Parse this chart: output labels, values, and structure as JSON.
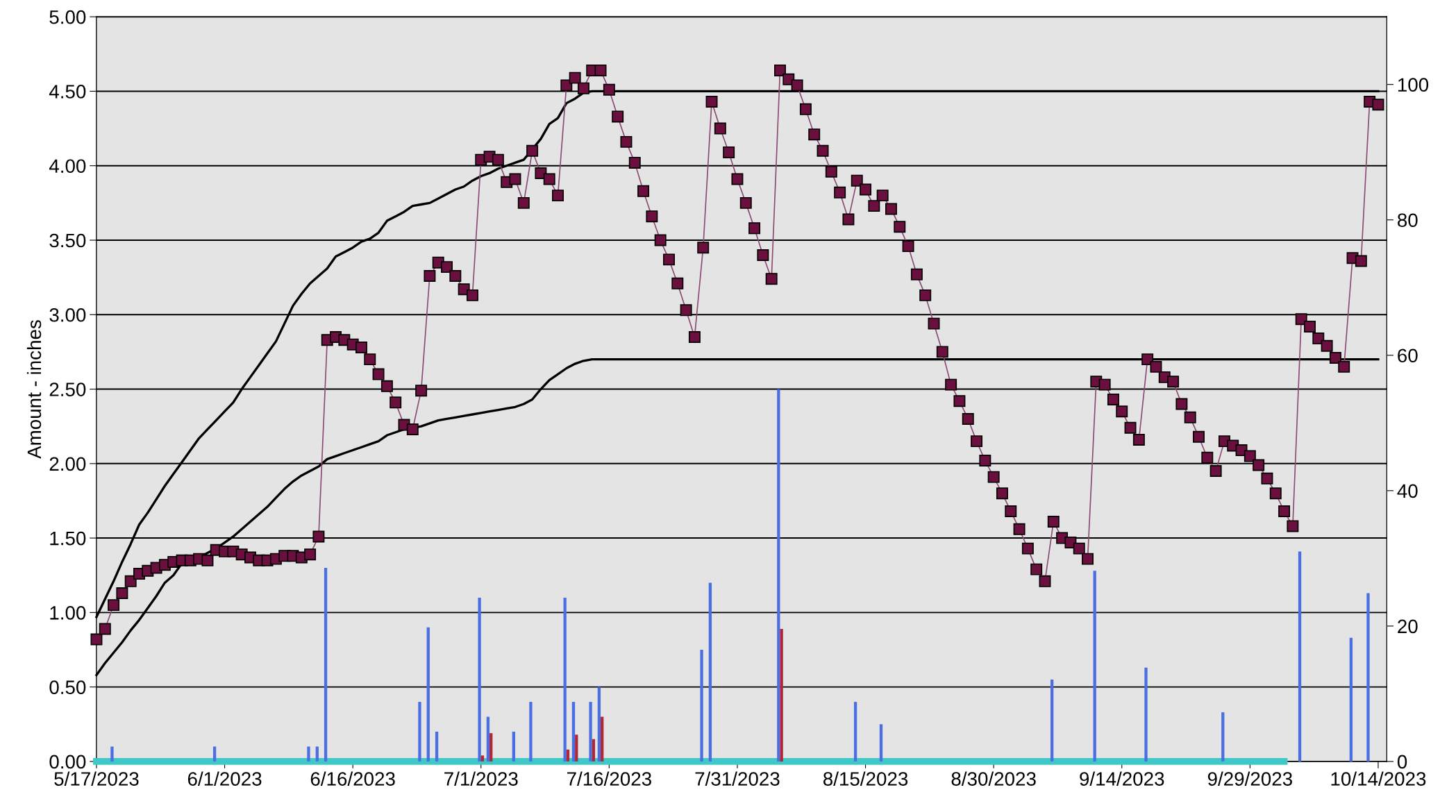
{
  "chart_data": {
    "type": "line",
    "ylabel": "Amount - inches",
    "ylim": [
      0,
      5
    ],
    "yticks": [
      {
        "value": 0,
        "label": "0.00"
      },
      {
        "value": 0.5,
        "label": "0.50"
      },
      {
        "value": 1,
        "label": "1.00"
      },
      {
        "value": 1.5,
        "label": "1.50"
      },
      {
        "value": 2,
        "label": "2.00"
      },
      {
        "value": 2.5,
        "label": "2.50"
      },
      {
        "value": 3,
        "label": "3.00"
      },
      {
        "value": 3.5,
        "label": "3.50"
      },
      {
        "value": 4,
        "label": "4.00"
      },
      {
        "value": 4.5,
        "label": "4.50"
      },
      {
        "value": 5,
        "label": "5.00"
      }
    ],
    "y2lim": [
      0,
      110
    ],
    "y2ticks": [
      0,
      20,
      40,
      60,
      80,
      100
    ],
    "xlim": [
      "2023-05-17",
      "2023-10-15"
    ],
    "xticks": [
      {
        "value": "2023-05-17",
        "label": "5/17/2023"
      },
      {
        "value": "2023-06-01",
        "label": "6/1/2023"
      },
      {
        "value": "2023-06-16",
        "label": "6/16/2023"
      },
      {
        "value": "2023-07-01",
        "label": "7/1/2023"
      },
      {
        "value": "2023-07-16",
        "label": "7/16/2023"
      },
      {
        "value": "2023-07-31",
        "label": "7/31/2023"
      },
      {
        "value": "2023-08-15",
        "label": "8/15/2023"
      },
      {
        "value": "2023-08-30",
        "label": "8/30/2023"
      },
      {
        "value": "2023-09-14",
        "label": "9/14/2023"
      },
      {
        "value": "2023-09-29",
        "label": "9/29/2023"
      },
      {
        "value": "2023-10-14",
        "label": "10/14/2023"
      }
    ],
    "grid": "y",
    "x": [
      "2023-05-17",
      "2023-05-18",
      "2023-05-19",
      "2023-05-20",
      "2023-05-21",
      "2023-05-22",
      "2023-05-23",
      "2023-05-24",
      "2023-05-25",
      "2023-05-26",
      "2023-05-27",
      "2023-05-28",
      "2023-05-29",
      "2023-05-30",
      "2023-05-31",
      "2023-06-01",
      "2023-06-02",
      "2023-06-03",
      "2023-06-04",
      "2023-06-05",
      "2023-06-06",
      "2023-06-07",
      "2023-06-08",
      "2023-06-09",
      "2023-06-10",
      "2023-06-11",
      "2023-06-12",
      "2023-06-13",
      "2023-06-14",
      "2023-06-15",
      "2023-06-16",
      "2023-06-17",
      "2023-06-18",
      "2023-06-19",
      "2023-06-20",
      "2023-06-21",
      "2023-06-22",
      "2023-06-23",
      "2023-06-24",
      "2023-06-25",
      "2023-06-26",
      "2023-06-27",
      "2023-06-28",
      "2023-06-29",
      "2023-06-30",
      "2023-07-01",
      "2023-07-02",
      "2023-07-03",
      "2023-07-04",
      "2023-07-05",
      "2023-07-06",
      "2023-07-07",
      "2023-07-08",
      "2023-07-09",
      "2023-07-10",
      "2023-07-11",
      "2023-07-12",
      "2023-07-13",
      "2023-07-14",
      "2023-07-15",
      "2023-07-16",
      "2023-07-17",
      "2023-07-18",
      "2023-07-19",
      "2023-07-20",
      "2023-07-21",
      "2023-07-22",
      "2023-07-23",
      "2023-07-24",
      "2023-07-25",
      "2023-07-26",
      "2023-07-27",
      "2023-07-28",
      "2023-07-29",
      "2023-07-30",
      "2023-07-31",
      "2023-08-01",
      "2023-08-02",
      "2023-08-03",
      "2023-08-04",
      "2023-08-05",
      "2023-08-06",
      "2023-08-07",
      "2023-08-08",
      "2023-08-09",
      "2023-08-10",
      "2023-08-11",
      "2023-08-12",
      "2023-08-13",
      "2023-08-14",
      "2023-08-15",
      "2023-08-16",
      "2023-08-17",
      "2023-08-18",
      "2023-08-19",
      "2023-08-20",
      "2023-08-21",
      "2023-08-22",
      "2023-08-23",
      "2023-08-24",
      "2023-08-25",
      "2023-08-26",
      "2023-08-27",
      "2023-08-28",
      "2023-08-29",
      "2023-08-30",
      "2023-08-31",
      "2023-09-01",
      "2023-09-02",
      "2023-09-03",
      "2023-09-04",
      "2023-09-05",
      "2023-09-06",
      "2023-09-07",
      "2023-09-08",
      "2023-09-09",
      "2023-09-10",
      "2023-09-11",
      "2023-09-12",
      "2023-09-13",
      "2023-09-14",
      "2023-09-15",
      "2023-09-16",
      "2023-09-17",
      "2023-09-18",
      "2023-09-19",
      "2023-09-20",
      "2023-09-21",
      "2023-09-22",
      "2023-09-23",
      "2023-09-24",
      "2023-09-25",
      "2023-09-26",
      "2023-09-27",
      "2023-09-28",
      "2023-09-29",
      "2023-09-30",
      "2023-10-01",
      "2023-10-02",
      "2023-10-03",
      "2023-10-04",
      "2023-10-05",
      "2023-10-06",
      "2023-10-07",
      "2023-10-08",
      "2023-10-09",
      "2023-10-10",
      "2023-10-11",
      "2023-10-12",
      "2023-10-13",
      "2023-10-14"
    ],
    "series": [
      {
        "color": "#40c8c8",
        "marker": "none",
        "x": [
          "2023-05-17",
          "2023-10-03"
        ],
        "values": [
          0,
          0
        ]
      },
      {
        "type": "bar",
        "color": "#4a6fe3",
        "x": [
          "2023-05-19",
          "2023-05-31",
          "2023-06-11",
          "2023-06-12",
          "2023-06-13",
          "2023-06-24",
          "2023-06-25",
          "2023-06-26",
          "2023-07-01",
          "2023-07-02",
          "2023-07-05",
          "2023-07-07",
          "2023-07-11",
          "2023-07-12",
          "2023-07-14",
          "2023-07-15",
          "2023-07-27",
          "2023-07-28",
          "2023-08-05",
          "2023-08-14",
          "2023-08-17",
          "2023-09-06",
          "2023-09-11",
          "2023-09-17",
          "2023-09-26",
          "2023-10-05",
          "2023-10-11",
          "2023-10-13"
        ],
        "values": [
          0.1,
          0.1,
          0.1,
          0.1,
          1.3,
          0.4,
          0.9,
          0.2,
          1.1,
          0.3,
          0.2,
          0.4,
          1.1,
          0.4,
          0.4,
          0.5,
          0.75,
          1.2,
          2.5,
          0.4,
          0.25,
          0.55,
          1.28,
          0.63,
          0.33,
          1.41,
          0.83,
          1.13
        ]
      },
      {
        "type": "bar",
        "color": "#b02838",
        "x": [
          "2023-07-01",
          "2023-07-02",
          "2023-07-11",
          "2023-07-12",
          "2023-07-14",
          "2023-07-15",
          "2023-08-05"
        ],
        "values": [
          0.04,
          0.19,
          0.08,
          0.18,
          0.15,
          0.3,
          0.89
        ]
      },
      {
        "color": "#000000",
        "marker": "none",
        "x": [
          "2023-05-17",
          "2023-05-18",
          "2023-05-19",
          "2023-05-20",
          "2023-05-21",
          "2023-05-22",
          "2023-05-23",
          "2023-05-24",
          "2023-05-25",
          "2023-05-26",
          "2023-05-27",
          "2023-05-28",
          "2023-05-29",
          "2023-05-30",
          "2023-05-31",
          "2023-06-01",
          "2023-06-02",
          "2023-06-03",
          "2023-06-04",
          "2023-06-05",
          "2023-06-06",
          "2023-06-07",
          "2023-06-08",
          "2023-06-09",
          "2023-06-10",
          "2023-06-11",
          "2023-06-12",
          "2023-06-13",
          "2023-06-14",
          "2023-06-15",
          "2023-06-16",
          "2023-06-17",
          "2023-06-18",
          "2023-06-19",
          "2023-06-20",
          "2023-06-21",
          "2023-06-22",
          "2023-06-23",
          "2023-06-24",
          "2023-06-25",
          "2023-06-26",
          "2023-06-27",
          "2023-06-28",
          "2023-06-29",
          "2023-06-30",
          "2023-07-01",
          "2023-07-02",
          "2023-07-03",
          "2023-07-04",
          "2023-07-05",
          "2023-07-06",
          "2023-07-07",
          "2023-07-08",
          "2023-07-09",
          "2023-07-10",
          "2023-07-11",
          "2023-07-12",
          "2023-07-13",
          "2023-07-14",
          "2023-10-14"
        ],
        "values": [
          0.97,
          1.09,
          1.21,
          1.34,
          1.46,
          1.59,
          1.67,
          1.76,
          1.85,
          1.93,
          2.01,
          2.09,
          2.17,
          2.23,
          2.29,
          2.35,
          2.41,
          2.5,
          2.58,
          2.66,
          2.74,
          2.82,
          2.94,
          3.06,
          3.14,
          3.21,
          3.26,
          3.31,
          3.39,
          3.42,
          3.45,
          3.49,
          3.51,
          3.55,
          3.63,
          3.66,
          3.69,
          3.73,
          3.74,
          3.75,
          3.78,
          3.81,
          3.84,
          3.86,
          3.9,
          3.93,
          3.95,
          3.98,
          4.0,
          4.02,
          4.04,
          4.11,
          4.18,
          4.28,
          4.32,
          4.42,
          4.45,
          4.49,
          4.5,
          4.5
        ]
      },
      {
        "color": "#000000",
        "marker": "none",
        "x": [
          "2023-05-17",
          "2023-05-18",
          "2023-05-19",
          "2023-05-20",
          "2023-05-21",
          "2023-05-22",
          "2023-05-23",
          "2023-05-24",
          "2023-05-25",
          "2023-05-26",
          "2023-05-27",
          "2023-05-28",
          "2023-05-29",
          "2023-05-30",
          "2023-05-31",
          "2023-06-01",
          "2023-06-02",
          "2023-06-03",
          "2023-06-04",
          "2023-06-05",
          "2023-06-06",
          "2023-06-07",
          "2023-06-08",
          "2023-06-09",
          "2023-06-10",
          "2023-06-11",
          "2023-06-12",
          "2023-06-13",
          "2023-06-14",
          "2023-06-15",
          "2023-06-16",
          "2023-06-17",
          "2023-06-18",
          "2023-06-19",
          "2023-06-20",
          "2023-06-21",
          "2023-06-22",
          "2023-06-23",
          "2023-06-24",
          "2023-06-25",
          "2023-06-26",
          "2023-06-27",
          "2023-06-28",
          "2023-06-29",
          "2023-06-30",
          "2023-07-01",
          "2023-07-02",
          "2023-07-03",
          "2023-07-04",
          "2023-07-05",
          "2023-07-06",
          "2023-07-07",
          "2023-07-08",
          "2023-07-09",
          "2023-07-10",
          "2023-07-11",
          "2023-07-12",
          "2023-07-13",
          "2023-07-14",
          "2023-10-14"
        ],
        "values": [
          0.58,
          0.66,
          0.73,
          0.8,
          0.88,
          0.95,
          1.03,
          1.11,
          1.2,
          1.25,
          1.33,
          1.36,
          1.37,
          1.4,
          1.43,
          1.47,
          1.51,
          1.56,
          1.61,
          1.66,
          1.71,
          1.77,
          1.83,
          1.88,
          1.92,
          1.95,
          1.98,
          2.03,
          2.05,
          2.07,
          2.09,
          2.11,
          2.13,
          2.15,
          2.19,
          2.21,
          2.23,
          2.24,
          2.25,
          2.27,
          2.29,
          2.3,
          2.31,
          2.32,
          2.33,
          2.34,
          2.35,
          2.36,
          2.37,
          2.38,
          2.4,
          2.43,
          2.5,
          2.56,
          2.6,
          2.64,
          2.67,
          2.69,
          2.7,
          2.7
        ]
      },
      {
        "color": "#6b0f3f",
        "marker": "square",
        "values": [
          0.82,
          0.89,
          1.05,
          1.13,
          1.21,
          1.26,
          1.28,
          1.3,
          1.32,
          1.34,
          1.35,
          1.35,
          1.36,
          1.35,
          1.42,
          1.41,
          1.41,
          1.39,
          1.37,
          1.35,
          1.35,
          1.36,
          1.38,
          1.38,
          1.37,
          1.39,
          1.51,
          2.83,
          2.85,
          2.83,
          2.8,
          2.78,
          2.7,
          2.6,
          2.52,
          2.41,
          2.26,
          2.23,
          2.49,
          3.26,
          3.35,
          3.32,
          3.26,
          3.17,
          3.13,
          4.04,
          4.06,
          4.04,
          3.89,
          3.91,
          3.75,
          4.1,
          3.95,
          3.91,
          3.8,
          4.54,
          4.59,
          4.52,
          4.64,
          4.64,
          4.51,
          4.33,
          4.16,
          4.02,
          3.83,
          3.66,
          3.5,
          3.37,
          3.21,
          3.03,
          2.85,
          3.45,
          4.43,
          4.25,
          4.09,
          3.91,
          3.75,
          3.58,
          3.4,
          3.24,
          4.64,
          4.58,
          4.54,
          4.38,
          4.21,
          4.1,
          3.96,
          3.82,
          3.64,
          3.9,
          3.84,
          3.73,
          3.8,
          3.71,
          3.59,
          3.46,
          3.27,
          3.13,
          2.94,
          2.75,
          2.53,
          2.42,
          2.3,
          2.15,
          2.02,
          1.91,
          1.8,
          1.68,
          1.56,
          1.43,
          1.29,
          1.21,
          1.61,
          1.5,
          1.47,
          1.43,
          1.36,
          2.55,
          2.53,
          2.43,
          2.35,
          2.24,
          2.16,
          2.7,
          2.65,
          2.58,
          2.55,
          2.4,
          2.31,
          2.18,
          2.04,
          1.95,
          2.15,
          2.12,
          2.09,
          2.05,
          1.99,
          1.9,
          1.8,
          1.68,
          1.58,
          2.97,
          2.92,
          2.84,
          2.79,
          2.71,
          2.65,
          3.38,
          3.36,
          4.43,
          4.41
        ]
      }
    ]
  }
}
